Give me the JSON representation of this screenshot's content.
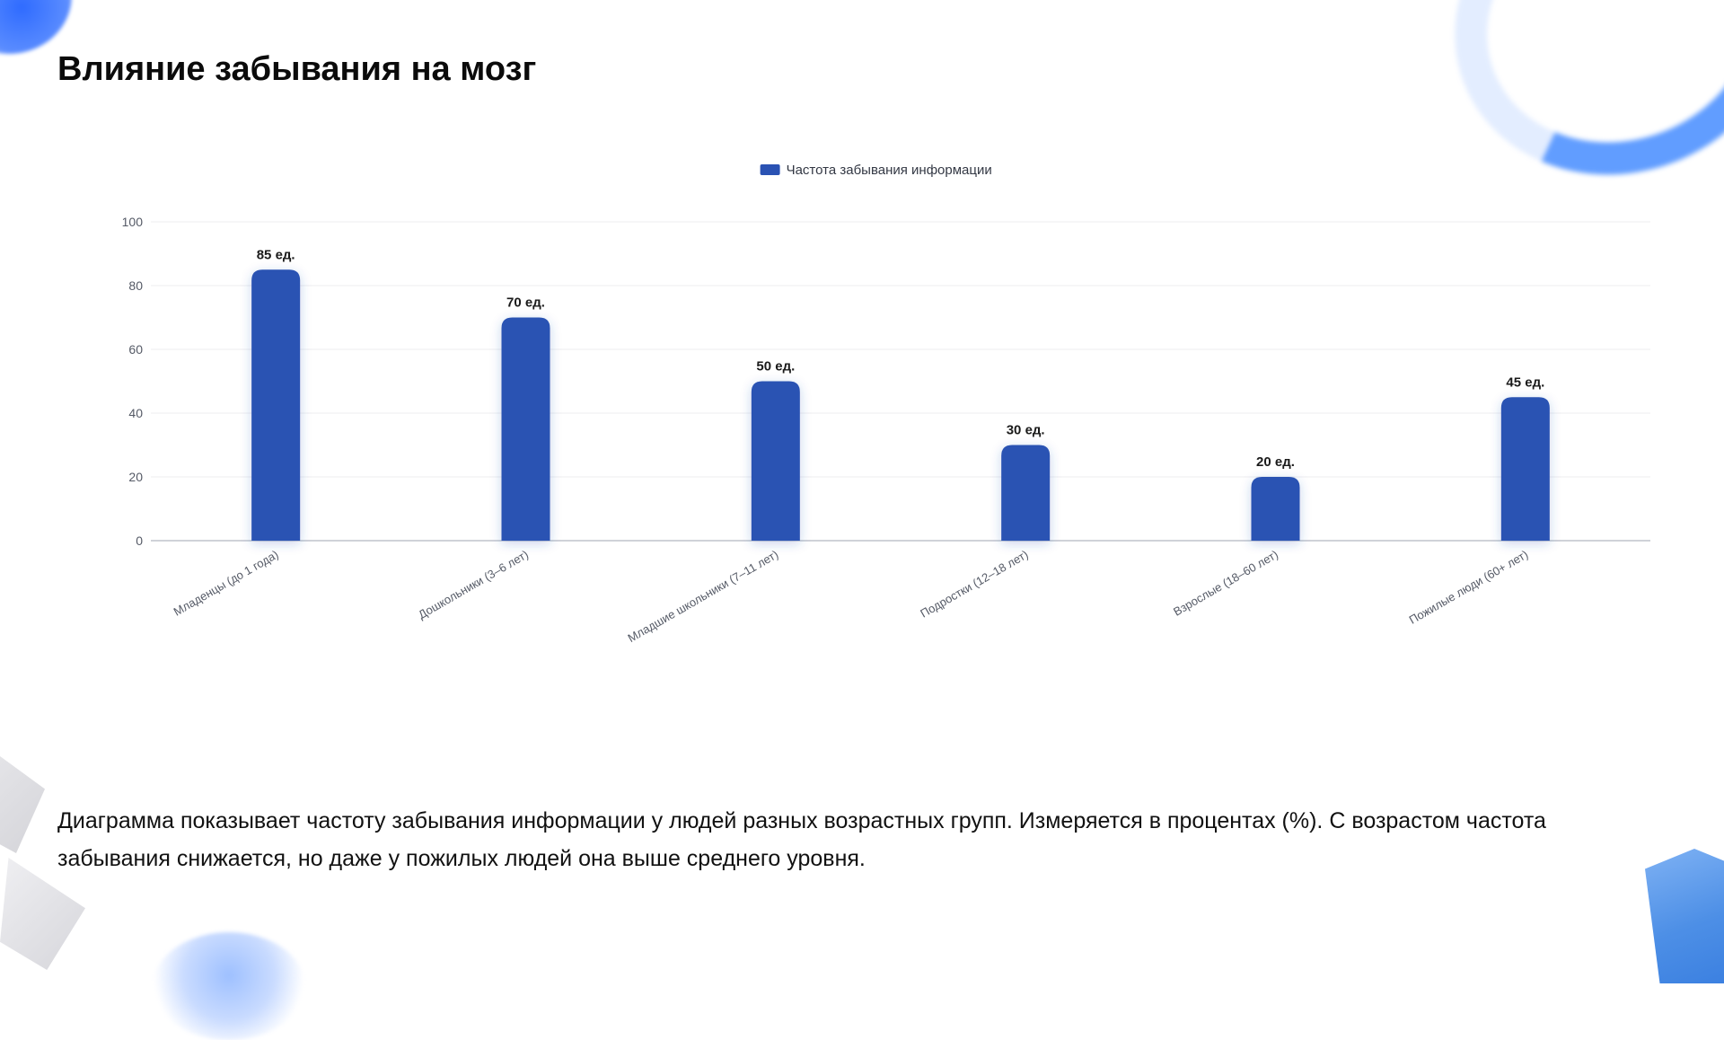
{
  "page": {
    "title": "Влияние забывания на мозг",
    "description": "Диаграмма показывает частоту забывания информации у людей разных возрастных групп. Измеряется в процентах (%). С возрастом частота забывания снижается, но даже у пожилых людей она выше среднего уровня."
  },
  "colors": {
    "bar": "#2a52b3",
    "grid": "#ececef",
    "axis": "#bfc3cc",
    "tick_text": "#555a66",
    "label_text": "#1a1a1a",
    "legend_swatch": "#2a52b3"
  },
  "chart_data": {
    "type": "bar",
    "title": "",
    "xlabel": "",
    "ylabel": "",
    "ylim": [
      0,
      100
    ],
    "y_ticks": [
      0,
      20,
      40,
      60,
      80,
      100
    ],
    "grid": true,
    "legend_position": "top-center",
    "categories": [
      "Младенцы (до 1 года)",
      "Дошкольники (3–6 лет)",
      "Младшие школьники (7–11 лет)",
      "Подростки (12–18 лет)",
      "Взрослые (18–60 лет)",
      "Пожилые люди (60+ лет)"
    ],
    "series": [
      {
        "name": "Частота забывания информации",
        "values": [
          85,
          70,
          50,
          30,
          20,
          45
        ],
        "data_labels": [
          "85 ед.",
          "70 ед.",
          "50 ед.",
          "30 ед.",
          "20 ед.",
          "45 ед."
        ]
      }
    ]
  }
}
